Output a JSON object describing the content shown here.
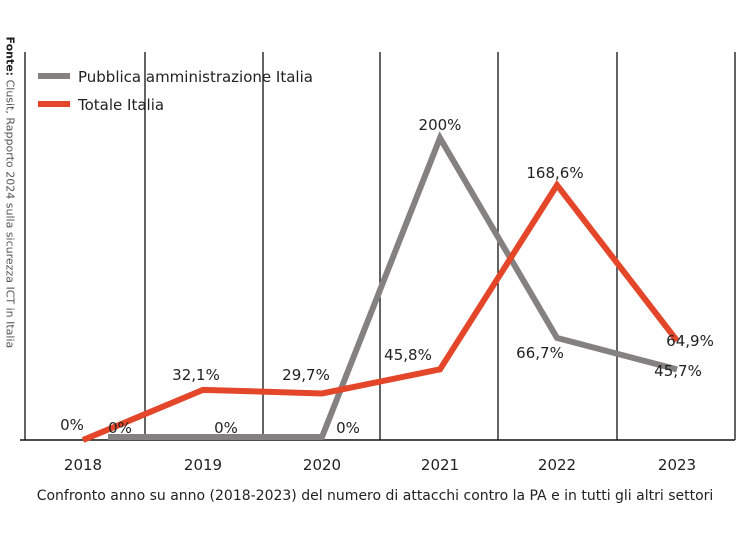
{
  "source": {
    "label": "Fonte:",
    "text": "Clusit, Rapporto 2024 sulla sicurezza ICT in Italia"
  },
  "chart_data": {
    "type": "line",
    "title": "Confronto anno su anno (2018-2023) del numero di attacchi contro la PA e in tutti gli altri settori",
    "categories": [
      "2018",
      "2019",
      "2020",
      "2021",
      "2022",
      "2023"
    ],
    "ylim": [
      0,
      200
    ],
    "legend_position": "top-left",
    "series": [
      {
        "name": "Pubblica amministrazione Italia",
        "color": "#858180",
        "values": [
          0,
          0,
          0,
          200,
          66.7,
          45.7
        ],
        "labels": [
          "0%",
          "0%",
          "0%",
          "200%",
          "66,7%",
          "45,7%"
        ]
      },
      {
        "name": "Totale Italia",
        "color": "#e4462a",
        "values": [
          0,
          32.1,
          29.7,
          45.8,
          168.6,
          64.9
        ],
        "labels": [
          "0%",
          "32,1%",
          "29,7%",
          "45,8%",
          "168,6%",
          "64,9%"
        ]
      }
    ]
  }
}
